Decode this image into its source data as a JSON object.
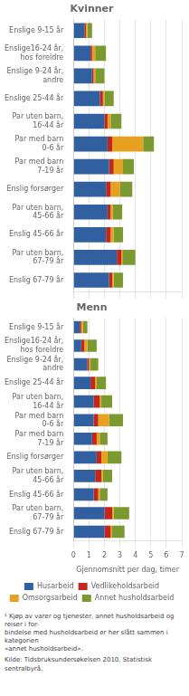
{
  "chart_data": [
    {
      "type": "bar",
      "title": "Kvinner",
      "orientation": "horizontal",
      "stacked": true,
      "categories": [
        "Enslige 9-15 år",
        "Enslige16-24 år,\nhos foreldre",
        "Enslige 9-24 år,\nandre",
        "Enslige 25-44 år",
        "Par uten barn,\n16-44 år",
        "Par med barn\n0-6 år",
        "Par med barn\n7-19 år",
        "Enslig forsørger",
        "Par uten barn,\n45-66 år",
        "Enslig 45-66 år",
        "Par uten barn,\n67-79 år",
        "Enslig 67-79 år"
      ],
      "series": [
        {
          "name": "Husarbeid",
          "color": "#3060a0",
          "values": [
            0.7,
            1.1,
            1.2,
            1.7,
            2.0,
            2.2,
            2.3,
            2.1,
            2.2,
            2.1,
            2.8,
            2.3
          ]
        },
        {
          "name": "Vedlikeholdsarbeid",
          "color": "#c0281e",
          "values": [
            0.1,
            0.1,
            0.1,
            0.2,
            0.2,
            0.3,
            0.3,
            0.3,
            0.2,
            0.3,
            0.3,
            0.2
          ]
        },
        {
          "name": "Omsorgsarbeid",
          "color": "#e8a020",
          "values": [
            0.1,
            0.2,
            0.1,
            0.1,
            0.2,
            2.0,
            0.6,
            0.6,
            0.15,
            0.2,
            0.1,
            0.1
          ]
        },
        {
          "name": "Annet husholdsarbeid",
          "color": "#7a9a30",
          "values": [
            0.3,
            0.7,
            0.6,
            0.6,
            0.7,
            0.7,
            0.7,
            0.8,
            0.6,
            0.6,
            0.8,
            0.6
          ]
        }
      ],
      "xlim": [
        0,
        7
      ],
      "xticks": [
        0,
        1,
        2,
        3,
        4,
        5,
        6,
        7
      ],
      "grid": true,
      "tick_labels": "y"
    },
    {
      "type": "bar",
      "title": "Menn",
      "orientation": "horizontal",
      "stacked": true,
      "xlabel": "Gjennomsnitt per dag, timer",
      "categories": [
        "Enslige 9-15 år",
        "Enslige16-24 år,\nhos foreldre",
        "Enslige 9-24 år,\nandre",
        "Enslige 25-44 år",
        "Par uten barn,\n16-44 år",
        "Par med barn\n0-6 år",
        "Par med barn\n7-19 år",
        "Enslig forsørger",
        "Par uten barn,\n45-66 år",
        "Enslig 45-66 år",
        "Par uten barn,\n67-79 år",
        "Enslig 67-79 år"
      ],
      "series": [
        {
          "name": "Husarbeid",
          "color": "#3060a0",
          "values": [
            0.4,
            0.5,
            0.9,
            1.1,
            1.3,
            1.3,
            1.2,
            1.5,
            1.4,
            1.3,
            2.0,
            2.0
          ]
        },
        {
          "name": "Vedlikeholdsarbeid",
          "color": "#c0281e",
          "values": [
            0.1,
            0.2,
            0.1,
            0.3,
            0.4,
            0.3,
            0.3,
            0.3,
            0.4,
            0.3,
            0.5,
            0.4
          ]
        },
        {
          "name": "Omsorgsarbeid",
          "color": "#e8a020",
          "values": [
            0.1,
            0.2,
            0.1,
            0.1,
            0.1,
            0.7,
            0.2,
            0.4,
            0.1,
            0.1,
            0.1,
            0.1
          ]
        },
        {
          "name": "Annet husholdsarbeid",
          "color": "#7a9a30",
          "values": [
            0.3,
            0.6,
            0.5,
            0.6,
            0.7,
            0.9,
            0.5,
            0.9,
            0.6,
            0.5,
            1.0,
            0.8
          ]
        }
      ],
      "xlim": [
        0,
        7
      ],
      "xticks": [
        0,
        1,
        2,
        3,
        4,
        5,
        6,
        7
      ],
      "grid": true,
      "legend": "bottom",
      "annotations": [
        "¹ Kjøp av varer og tjenester, annet husholdsarbeid og reiser i for-\nbindelse med husholdsarbeid er her slått sammen i kategorien\n«annet husholdsarbeid».",
        "Kilde:  Tidsbruksundersøkelsen 2010, Statistisk sentralbyrå."
      ]
    }
  ]
}
